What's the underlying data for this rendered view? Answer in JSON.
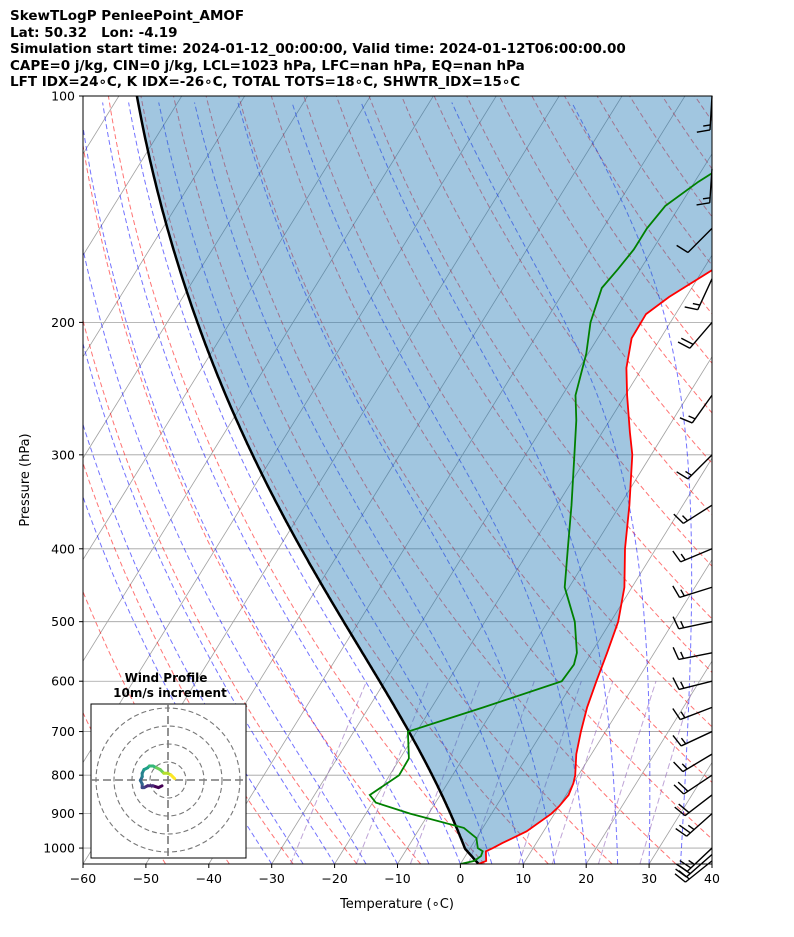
{
  "header": {
    "line1": "SkewTLogP PenleePoint_AMOF",
    "line2": "Lat: 50.32   Lon: -4.19",
    "line3": "Simulation start time: 2024-01-12_00:00:00, Valid time: 2024-01-12T06:00:00.00",
    "line4": "CAPE=0 j/kg, CIN=0 j/kg, LCL=1023 hPa, LFC=nan hPa, EQ=nan hPa",
    "line5": "LFT IDX=24∘C, K IDX=-26∘C, TOTAL TOTS=18∘C, SHWTR_IDX=15∘C"
  },
  "colors": {
    "temperature": "#ff0000",
    "dewpoint": "#008000",
    "parcel": "#000000",
    "cape_fill": "#1f77b4",
    "dry_adiabat": "#ff0000",
    "moist_adiabat": "#0000ff",
    "mixing_ratio": "#9467bd",
    "isotherm": "#a0a0a0"
  },
  "chart_data": {
    "type": "skewt-logp",
    "xlabel": "Temperature (∘C)",
    "ylabel": "Pressure (hPa)",
    "xlim": [
      -60,
      40
    ],
    "ylim": [
      1050,
      100
    ],
    "xticks": [
      -60,
      -50,
      -40,
      -30,
      -20,
      -10,
      0,
      10,
      20,
      30,
      40
    ],
    "yticks": [
      1000,
      900,
      800,
      700,
      600,
      500,
      400,
      300,
      200,
      100
    ],
    "y_scale": "log",
    "grid": true,
    "temperature": [
      [
        1050,
        2.9
      ],
      [
        1040,
        3.8
      ],
      [
        1025,
        3.3
      ],
      [
        1010,
        2.8
      ],
      [
        1000,
        3.6
      ],
      [
        985,
        4.6
      ],
      [
        950,
        7.3
      ],
      [
        900,
        9.5
      ],
      [
        880,
        10.0
      ],
      [
        850,
        10.4
      ],
      [
        820,
        10.0
      ],
      [
        800,
        9.5
      ],
      [
        750,
        7.6
      ],
      [
        700,
        6.1
      ],
      [
        650,
        4.7
      ],
      [
        600,
        3.6
      ],
      [
        550,
        2.5
      ],
      [
        500,
        1.2
      ],
      [
        450,
        -1.2
      ],
      [
        400,
        -4.9
      ],
      [
        350,
        -8.5
      ],
      [
        300,
        -13.0
      ],
      [
        280,
        -15.6
      ],
      [
        250,
        -19.7
      ],
      [
        230,
        -22.5
      ],
      [
        210,
        -24.6
      ],
      [
        195,
        -24.7
      ],
      [
        185,
        -22.7
      ],
      [
        170,
        -18.4
      ],
      [
        160,
        -15.4
      ],
      [
        150,
        -13.5
      ],
      [
        140,
        -12.3
      ],
      [
        130,
        -10.6
      ],
      [
        120,
        -8.6
      ],
      [
        110,
        -6.6
      ],
      [
        100,
        -5.6
      ]
    ],
    "dewpoint": [
      [
        1050,
        0.0
      ],
      [
        1040,
        1.9
      ],
      [
        1025,
        2.5
      ],
      [
        1010,
        2.3
      ],
      [
        1000,
        1.2
      ],
      [
        970,
        0.0
      ],
      [
        940,
        -3.0
      ],
      [
        900,
        -12.9
      ],
      [
        870,
        -19.5
      ],
      [
        850,
        -21.2
      ],
      [
        800,
        -18.5
      ],
      [
        760,
        -18.6
      ],
      [
        700,
        -21.4
      ],
      [
        650,
        -11.8
      ],
      [
        600,
        -1.9
      ],
      [
        570,
        -1.6
      ],
      [
        550,
        -2.3
      ],
      [
        500,
        -5.7
      ],
      [
        450,
        -10.7
      ],
      [
        400,
        -14.0
      ],
      [
        350,
        -17.7
      ],
      [
        300,
        -22.2
      ],
      [
        270,
        -25.3
      ],
      [
        250,
        -27.9
      ],
      [
        220,
        -30.3
      ],
      [
        200,
        -32.7
      ],
      [
        180,
        -34.3
      ],
      [
        170,
        -33.6
      ],
      [
        160,
        -33.0
      ],
      [
        150,
        -33.0
      ],
      [
        140,
        -32.3
      ],
      [
        130,
        -29.4
      ],
      [
        120,
        -25.4
      ],
      [
        110,
        -20.9
      ],
      [
        100,
        -15.7
      ]
    ],
    "parcel_profile": "from-surface T=2.9, Td=0.0, p=1050 hPa",
    "wind_barbs": {
      "pressures": [
        1040,
        1020,
        1000,
        900,
        850,
        800,
        750,
        700,
        650,
        600,
        550,
        500,
        450,
        400,
        350,
        300,
        250,
        200,
        175,
        150,
        125,
        100
      ],
      "u_kt": [
        15,
        16,
        17,
        18,
        17,
        15,
        15,
        15,
        13,
        16,
        15,
        14,
        16,
        12,
        11,
        10,
        10,
        12,
        6,
        8,
        1,
        1
      ],
      "v_kt": [
        12,
        14,
        16,
        16,
        13,
        10,
        9,
        7,
        5,
        4,
        3,
        3,
        5,
        5,
        7,
        10,
        14,
        14,
        13,
        8,
        15,
        17
      ]
    },
    "hodograph": {
      "title": "Wind Profile",
      "subtitle": "10m/s increment",
      "ring_increment_ms": 10,
      "rings": 3,
      "u_ms": [
        5,
        3,
        0,
        -3,
        -5,
        -6,
        -6,
        -7,
        -6,
        -6,
        -5,
        -3,
        -2,
        0,
        2,
        4,
        6,
        8,
        10,
        11,
        12
      ],
      "v_ms": [
        -1,
        -2,
        -1,
        -1,
        -2,
        -2,
        0,
        2,
        4,
        6,
        8,
        9,
        10,
        10,
        9,
        8,
        6,
        6,
        5,
        4,
        3
      ],
      "colormap": "viridis"
    }
  }
}
